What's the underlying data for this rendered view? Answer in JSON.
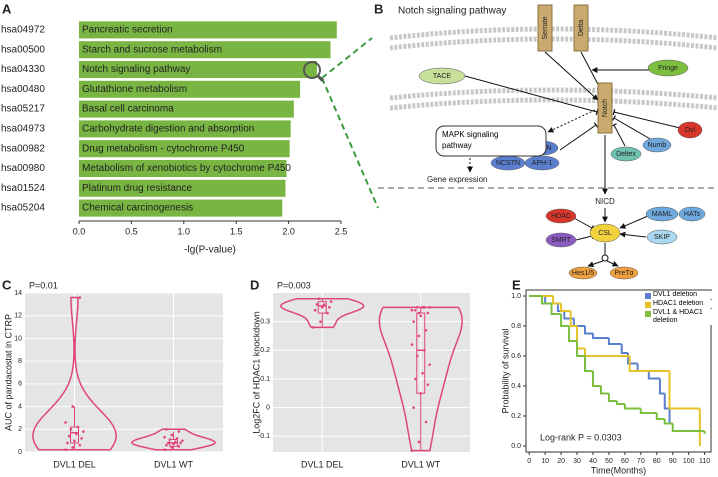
{
  "chart_data": [
    {
      "panel": "A",
      "type": "bar",
      "orientation": "horizontal",
      "categories": [
        "hsa04972",
        "hsa00500",
        "hsa04330",
        "hsa00480",
        "hsa05217",
        "hsa04973",
        "hsa00982",
        "hsa00980",
        "hsa01524",
        "hsa05204"
      ],
      "descriptions": [
        "Pancreatic secretion",
        "Starch and sucrose metabolism",
        "Notch signaling pathway",
        "Glutathione metabolism",
        "Basal cell carcinoma",
        "Carbohydrate digestion and absorption",
        "Drug metabolism - cytochrome P450",
        "Metabolism of xenobiotics by cytochrome P450",
        "Platinum drug resistance",
        "Chemical carcinogenesis"
      ],
      "values": [
        2.46,
        2.4,
        2.27,
        2.11,
        2.05,
        2.02,
        2.01,
        1.98,
        1.97,
        1.94
      ],
      "color": "#79b543",
      "xlabel": "-lg(P-value)",
      "xlim": [
        0,
        2.5
      ],
      "xticks": [
        {
          "value": 0,
          "label": "0.0"
        },
        {
          "value": 0.5,
          "label": "0.5"
        },
        {
          "value": 1,
          "label": "1.0"
        },
        {
          "value": 1.5,
          "label": "1.5"
        },
        {
          "value": 2,
          "label": "2.0"
        },
        {
          "value": 2.5,
          "label": "2.5"
        }
      ]
    },
    {
      "panel": "C",
      "type": "violin",
      "annotation": "P=0.01",
      "ylabel": "AUC of pandacostat in CTRP",
      "categories": [
        "DVL1 DEL",
        "DVL1 WT"
      ],
      "groups": [
        {
          "points": [
            0.2,
            0.4,
            0.6,
            0.8,
            1.0,
            1.2,
            1.4,
            1.6,
            1.8,
            2.0,
            2.2,
            2.6,
            4.0,
            13.6
          ],
          "whisker_low": 0.2,
          "q1": 0.8,
          "median": 1.7,
          "q3": 2.2,
          "whisker_high": 4.0
        },
        {
          "points": [
            0.2,
            0.4,
            0.5,
            0.6,
            0.7,
            0.8,
            0.8,
            0.9,
            1.0,
            1.1,
            1.2,
            1.3,
            1.5,
            1.8,
            2.0
          ],
          "whisker_low": 0.2,
          "q1": 0.5,
          "median": 0.8,
          "q3": 1.1,
          "whisker_high": 1.8
        }
      ],
      "color": "#e0457b",
      "ylim": [
        0,
        14
      ],
      "yticks": [
        0,
        2,
        4,
        6,
        8,
        10,
        12,
        14
      ],
      "grid": true
    },
    {
      "panel": "D",
      "type": "violin",
      "annotation": "P=0.003",
      "ylabel": "Log2FC of HDAC1 knockdown",
      "categories": [
        "DVL1 DEL",
        "DVL1 WT"
      ],
      "groups": [
        {
          "points": [
            0.28,
            0.3,
            0.33,
            0.34,
            0.35,
            0.35,
            0.36,
            0.36,
            0.37,
            0.38
          ],
          "whisker_low": 0.28,
          "q1": 0.33,
          "median": 0.355,
          "q3": 0.37,
          "whisker_high": 0.38
        },
        {
          "points": [
            -0.15,
            -0.12,
            -0.05,
            0.0,
            0.05,
            0.08,
            0.1,
            0.12,
            0.15,
            0.18,
            0.2,
            0.22,
            0.25,
            0.27,
            0.3,
            0.32,
            0.33,
            0.34,
            0.35,
            0.35,
            0.35,
            0.35,
            0.34,
            0.33
          ],
          "whisker_low": -0.15,
          "q1": 0.05,
          "median": 0.2,
          "q3": 0.33,
          "whisker_high": 0.35
        }
      ],
      "color": "#e0457b",
      "ylim": [
        -0.155,
        0.4
      ],
      "yticks": [
        -0.1,
        0,
        0.1,
        0.2,
        0.3
      ],
      "grid": true
    },
    {
      "panel": "E",
      "type": "survival",
      "ylabel": "Probability of survival",
      "xlabel": "Time(Months)",
      "annotation": "Log-rank P = 0.0303",
      "series": [
        {
          "name": "DVL1 deletion",
          "color": "#5b7fcf",
          "x": [
            0,
            10,
            18,
            22,
            28,
            35,
            40,
            50,
            58,
            62,
            68,
            75,
            82,
            85,
            88,
            90
          ],
          "values": [
            1.0,
            0.95,
            0.9,
            0.85,
            0.8,
            0.75,
            0.72,
            0.68,
            0.62,
            0.55,
            0.5,
            0.45,
            0.35,
            0.25,
            0.15,
            0.15
          ]
        },
        {
          "name": "HDAC1 deletion",
          "color": "#e6c229",
          "x": [
            0,
            15,
            20,
            26,
            30,
            35,
            63,
            88,
            107
          ],
          "values": [
            1.0,
            0.95,
            0.9,
            0.8,
            0.65,
            0.6,
            0.5,
            0.25,
            0.0
          ]
        },
        {
          "name": "DVL1 & HDAC1 deletion",
          "color": "#7cbf3f",
          "x": [
            0,
            8,
            14,
            20,
            25,
            30,
            35,
            40,
            45,
            50,
            55,
            60,
            70,
            80,
            85,
            90,
            110
          ],
          "values": [
            1.0,
            0.95,
            0.88,
            0.8,
            0.7,
            0.6,
            0.5,
            0.4,
            0.35,
            0.3,
            0.28,
            0.25,
            0.22,
            0.18,
            0.15,
            0.1,
            0.08
          ]
        }
      ],
      "xlim": [
        -2,
        114
      ],
      "xticks": [
        0,
        10,
        20,
        30,
        40,
        50,
        60,
        70,
        80,
        90,
        100,
        110
      ],
      "ylim": [
        -0.04,
        1.04
      ],
      "yticks": [
        {
          "value": 0,
          "label": "0.0"
        },
        {
          "value": 0.2,
          "label": "0.2"
        },
        {
          "value": 0.4,
          "label": "0.4"
        },
        {
          "value": 0.6,
          "label": "0.6"
        },
        {
          "value": 0.8,
          "label": "0.8"
        },
        {
          "value": 1,
          "label": "1.0"
        }
      ],
      "legend": "upper right"
    }
  ],
  "diagram": {
    "panel": "B",
    "title": "Notch signaling pathway",
    "labels": {
      "serrate": "Serrate",
      "delta": "Delta",
      "tace": "TACE",
      "fringe": "Fringe",
      "notch": "Notch",
      "mapk": "MAPK signaling pathway",
      "gene": "Gene expression",
      "pse2": "PSE2",
      "psen": "PSEN",
      "ncstn": "NCSTN",
      "aph1": "APH-1",
      "deltex": "Deltex",
      "numb": "Numb",
      "dvl": "Dvl",
      "nicd": "NICD",
      "hdac": "HDAC",
      "maml": "MAML",
      "hats": "HATs",
      "smrt": "SMRT",
      "csl": "CSL",
      "skip": "SKIP",
      "hes": "Hes1/5",
      "pret": "PreTα"
    }
  }
}
